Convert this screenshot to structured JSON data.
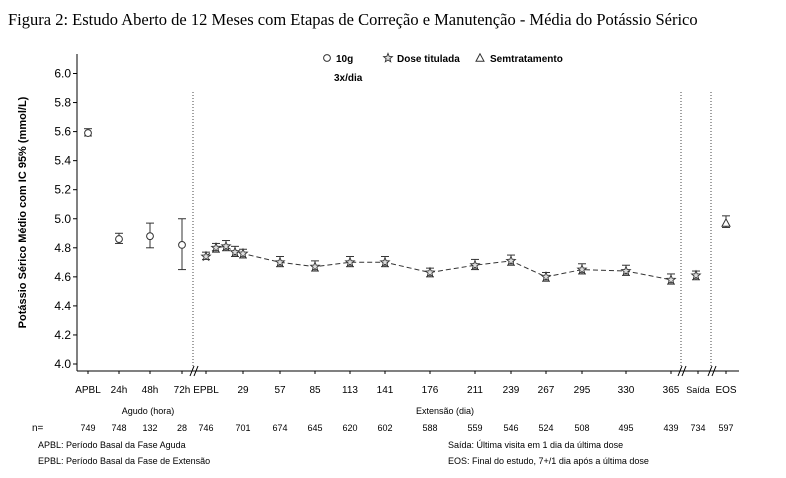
{
  "title": "Figura 2: Estudo Aberto de 12 Meses com Etapas de Correção e Manutenção - Média do Potássio Sérico",
  "chart_data": {
    "type": "scatter",
    "title": "Figura 2: Estudo Aberto de 12 Meses com Etapas de Correção e Manutenção - Média do Potássio Sérico",
    "ylabel": "Potássio Sérico Médio com IC 95% (mmol/L)",
    "ylim": [
      4.0,
      6.0
    ],
    "yticks": [
      "6.0",
      "5.8",
      "5.6",
      "5.4",
      "5.2",
      "5.0",
      "4.8",
      "4.6",
      "4.4",
      "4.2",
      "4.0"
    ],
    "yvals": [
      6.0,
      5.8,
      5.6,
      5.4,
      5.2,
      5.0,
      4.8,
      4.6,
      4.4,
      4.2,
      4.0
    ],
    "legend": [
      {
        "label": "10g",
        "sublabel": "3x/dia",
        "marker": "circle"
      },
      {
        "label": "Dose titulada",
        "marker": "star"
      },
      {
        "label": "Semtratamento",
        "marker": "triangle"
      }
    ],
    "x_tick_labels": [
      "APBL",
      "24h",
      "48h",
      "72h",
      "EPBL",
      "29",
      "57",
      "85",
      "113",
      "141",
      "176",
      "211",
      "239",
      "267",
      "295",
      "330",
      "365",
      "Saída",
      "EOS"
    ],
    "x_group_labels": [
      "Agudo (hora)",
      "Extensão (dia)"
    ],
    "n_label": "n=",
    "n_values": [
      "749",
      "748",
      "132",
      "28",
      "746",
      "701",
      "674",
      "645",
      "620",
      "602",
      "588",
      "559",
      "546",
      "524",
      "508",
      "495",
      "439",
      "734",
      "597"
    ],
    "series": [
      {
        "marker": "circle",
        "points": [
          {
            "x": "APBL",
            "y": 5.59,
            "lo": 5.57,
            "hi": 5.62
          },
          {
            "x": "24h",
            "y": 4.86,
            "lo": 4.83,
            "hi": 4.9
          },
          {
            "x": "48h",
            "y": 4.88,
            "lo": 4.8,
            "hi": 4.97
          },
          {
            "x": "72h",
            "y": 4.82,
            "lo": 4.65,
            "hi": 5.0
          }
        ]
      },
      {
        "marker": "star",
        "points": [
          {
            "x": "EPBL",
            "y": 4.74,
            "lo": 4.72,
            "hi": 4.77
          },
          {
            "x": "8",
            "y": 4.8,
            "lo": 4.77,
            "hi": 4.83
          },
          {
            "x": "15",
            "y": 4.81,
            "lo": 4.78,
            "hi": 4.85
          },
          {
            "x": "22",
            "y": 4.77,
            "lo": 4.74,
            "hi": 4.81
          },
          {
            "x": "29",
            "y": 4.76,
            "lo": 4.73,
            "hi": 4.79
          },
          {
            "x": "57",
            "y": 4.7,
            "lo": 4.67,
            "hi": 4.74
          },
          {
            "x": "85",
            "y": 4.67,
            "lo": 4.64,
            "hi": 4.71
          },
          {
            "x": "113",
            "y": 4.7,
            "lo": 4.67,
            "hi": 4.74
          },
          {
            "x": "141",
            "y": 4.7,
            "lo": 4.67,
            "hi": 4.74
          },
          {
            "x": "176",
            "y": 4.63,
            "lo": 4.6,
            "hi": 4.66
          },
          {
            "x": "211",
            "y": 4.68,
            "lo": 4.65,
            "hi": 4.72
          },
          {
            "x": "239",
            "y": 4.71,
            "lo": 4.68,
            "hi": 4.75
          },
          {
            "x": "267",
            "y": 4.6,
            "lo": 4.57,
            "hi": 4.63
          },
          {
            "x": "295",
            "y": 4.65,
            "lo": 4.62,
            "hi": 4.69
          },
          {
            "x": "330",
            "y": 4.64,
            "lo": 4.61,
            "hi": 4.68
          },
          {
            "x": "365",
            "y": 4.58,
            "lo": 4.55,
            "hi": 4.62
          },
          {
            "x": "Saída",
            "y": 4.61,
            "lo": 4.58,
            "hi": 4.64
          }
        ]
      },
      {
        "marker": "triangle",
        "points": [
          {
            "x": "EOS",
            "y": 4.97,
            "lo": 4.94,
            "hi": 5.02
          }
        ]
      }
    ],
    "annotations": [
      "APBL: Período Basal da Fase Aguda",
      "EPBL: Período Basal da Fase de Extensão",
      "Saída: Última visita em 1 dia da última dose",
      "EOS: Final do estudo, 7+/1 dia após a última dose"
    ]
  }
}
